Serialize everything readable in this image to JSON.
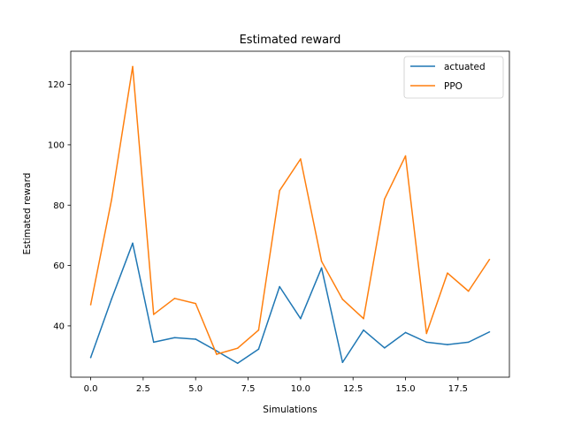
{
  "chart_data": {
    "type": "line",
    "title": "Estimated reward",
    "xlabel": "Simulations",
    "ylabel": "Estimated reward",
    "x": [
      0,
      1,
      2,
      3,
      4,
      5,
      6,
      7,
      8,
      9,
      10,
      11,
      12,
      13,
      14,
      15,
      16,
      17,
      18,
      19
    ],
    "xlim": [
      -0.95,
      19.95
    ],
    "ylim": [
      23.0,
      131.0
    ],
    "xticks": [
      0.0,
      2.5,
      5.0,
      7.5,
      10.0,
      12.5,
      15.0,
      17.5
    ],
    "xtick_labels": [
      "0.0",
      "2.5",
      "5.0",
      "7.5",
      "10.0",
      "12.5",
      "15.0",
      "17.5"
    ],
    "yticks": [
      40,
      60,
      80,
      100,
      120
    ],
    "ytick_labels": [
      "40",
      "60",
      "80",
      "100",
      "120"
    ],
    "grid": false,
    "legend_position": "top-right",
    "series": [
      {
        "name": "actuated",
        "color": "#1f77b4",
        "values": [
          29.5,
          49.0,
          67.4,
          34.6,
          36.1,
          35.6,
          31.7,
          27.6,
          32.3,
          53.0,
          42.4,
          59.2,
          27.9,
          38.6,
          32.7,
          37.8,
          34.6,
          33.8,
          34.6,
          38.0
        ]
      },
      {
        "name": "PPO",
        "color": "#ff7f0e",
        "values": [
          47.0,
          82.0,
          125.9,
          43.8,
          49.1,
          47.4,
          30.6,
          32.6,
          38.6,
          84.8,
          95.3,
          61.4,
          48.8,
          42.4,
          82.0,
          96.3,
          37.5,
          57.5,
          51.5,
          62.0
        ]
      }
    ]
  }
}
